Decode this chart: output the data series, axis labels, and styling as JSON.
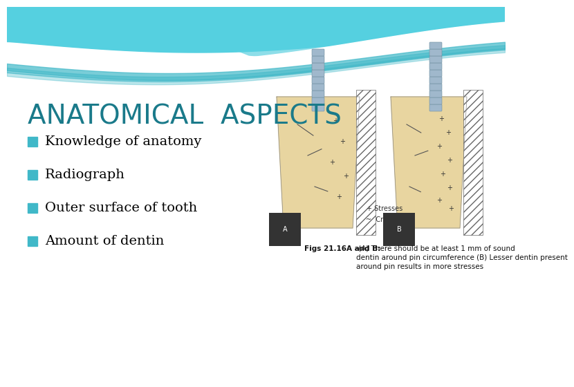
{
  "title": "ANATOMICAL  ASPECTS",
  "title_color": "#1a7a8a",
  "title_fontsize": 28,
  "bullet_texts": [
    "Knowledge of anatomy",
    "Radiograph",
    "Outer surface of tooth",
    "Amount of dentin"
  ],
  "bullet_fontsize": 14,
  "bullet_color": "#000000",
  "bullet_square_color": "#40b8c8",
  "bg_color": "#ffffff",
  "wave_teal_top": "#55d0e0",
  "wave_teal_mid": "#40b8c8",
  "wave_teal_right": "#88dde8",
  "caption_bold": "Figs 21.16A and B:",
  "caption_rest": " (A) There should be at least 1 mm of sound\ndentin around pin circumference (B) Lesser dentin present\naround pin results in more stresses",
  "caption_fontsize": 7.5,
  "stresses_label": "+ Stresses",
  "cracks_label": "~  Cracks"
}
